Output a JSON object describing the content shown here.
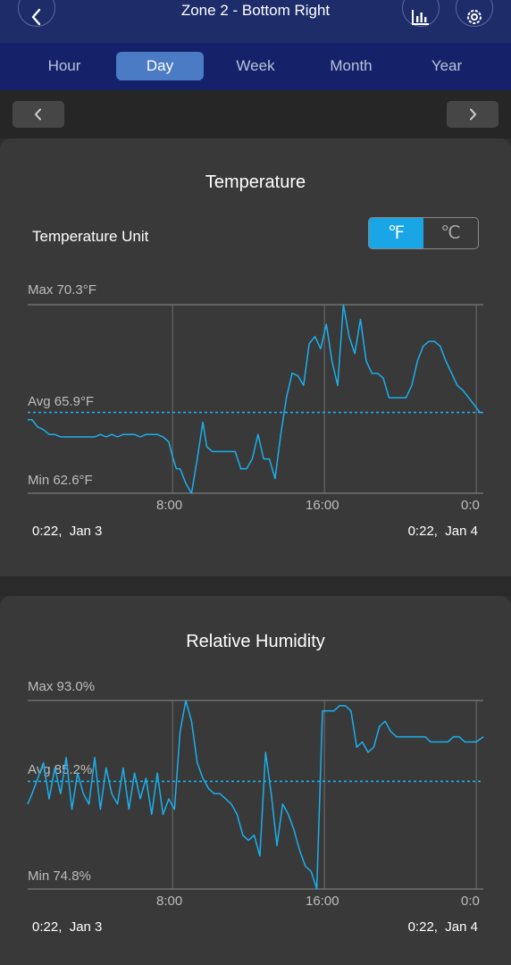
{
  "header": {
    "title": "Zone 2 - Bottom Right",
    "back_icon": "chevron-left-icon",
    "chart_icon": "bar-chart-icon",
    "settings_icon": "gear-icon"
  },
  "tabs": [
    {
      "label": "Hour",
      "active": false
    },
    {
      "label": "Day",
      "active": true
    },
    {
      "label": "Week",
      "active": false
    },
    {
      "label": "Month",
      "active": false
    },
    {
      "label": "Year",
      "active": false
    }
  ],
  "nav": {
    "prev_icon": "chevron-left-icon",
    "next_icon": "chevron-right-icon"
  },
  "temperature": {
    "title": "Temperature",
    "unit_label": "Temperature Unit",
    "unit_f": "℉",
    "unit_c": "℃",
    "selected_unit": "F",
    "max_label": "Max 70.3°F",
    "avg_label": "Avg 65.9°F",
    "min_label": "Min 62.6°F",
    "ticks": [
      "8:00",
      "16:00",
      "0:0"
    ],
    "start_label": "0:22,  Jan 3",
    "end_label": "0:22,  Jan 4"
  },
  "humidity": {
    "title": "Relative Humidity",
    "max_label": "Max 93.0%",
    "avg_label": "Avg 85.2%",
    "min_label": "Min 74.8%",
    "ticks": [
      "8:00",
      "16:00",
      "0:0"
    ],
    "start_label": "0:22,  Jan 3",
    "end_label": "0:22,  Jan 4"
  },
  "colors": {
    "line": "#1ab0ee",
    "avg": "#1ab0ee",
    "accent": "#1aa6e6"
  },
  "chart_data": [
    {
      "type": "line",
      "title": "Temperature",
      "unit": "°F",
      "x_range_hours": [
        0.37,
        24.37
      ],
      "x_ticks_hours": [
        8,
        16,
        24
      ],
      "ylim": [
        62.6,
        70.3
      ],
      "avg": 65.9,
      "series": [
        {
          "x": [
            0.37,
            0.6,
            0.9,
            1.2,
            1.5,
            1.8,
            2.1,
            2.4,
            2.7,
            3.0,
            3.3,
            3.6,
            3.9,
            4.2,
            4.5,
            4.8,
            5.1,
            5.4,
            5.7,
            6.0,
            6.3,
            6.6,
            6.9,
            7.2,
            7.5,
            7.8,
            8.0,
            8.2,
            8.4,
            8.7,
            9.0,
            9.3,
            9.6,
            9.8,
            10.1,
            10.4,
            10.7,
            11.0,
            11.3,
            11.6,
            11.9,
            12.2,
            12.5,
            12.8,
            13.1,
            13.4,
            13.7,
            14.0,
            14.3,
            14.6,
            14.9,
            15.2,
            15.5,
            15.8,
            16.1,
            16.4,
            16.7,
            17.0,
            17.3,
            17.6,
            17.9,
            18.2,
            18.5,
            18.8,
            19.1,
            19.4,
            19.7,
            20.0,
            20.3,
            20.6,
            20.9,
            21.2,
            21.5,
            21.8,
            22.1,
            22.4,
            22.7,
            23.0,
            23.3,
            23.6,
            23.9,
            24.2,
            24.37
          ],
          "y": [
            65.6,
            65.6,
            65.3,
            65.2,
            65.0,
            65.0,
            64.9,
            64.9,
            64.9,
            64.9,
            64.9,
            64.9,
            64.9,
            65.0,
            64.9,
            65.0,
            64.9,
            65.0,
            65.0,
            65.0,
            64.9,
            65.0,
            65.0,
            65.0,
            64.9,
            64.7,
            64.1,
            63.6,
            63.6,
            63.0,
            62.6,
            64.0,
            65.5,
            64.5,
            64.3,
            64.3,
            64.3,
            64.3,
            64.3,
            63.6,
            63.6,
            64.0,
            65.0,
            64.0,
            64.0,
            63.2,
            65.0,
            66.5,
            67.5,
            67.4,
            67.0,
            68.7,
            69.0,
            68.5,
            69.5,
            68.0,
            67.0,
            70.3,
            69.0,
            68.3,
            69.7,
            68.0,
            67.5,
            67.5,
            67.3,
            66.5,
            66.5,
            66.5,
            66.5,
            67.0,
            68.0,
            68.6,
            68.8,
            68.8,
            68.6,
            68.0,
            67.5,
            67.0,
            66.8,
            66.5,
            66.2,
            65.9,
            65.9
          ]
        }
      ]
    },
    {
      "type": "line",
      "title": "Relative Humidity",
      "unit": "%",
      "x_range_hours": [
        0.37,
        24.37
      ],
      "x_ticks_hours": [
        8,
        16,
        24
      ],
      "ylim": [
        74.8,
        93.0
      ],
      "avg": 85.2,
      "series": [
        {
          "x": [
            0.37,
            0.6,
            0.9,
            1.2,
            1.5,
            1.8,
            2.1,
            2.4,
            2.7,
            3.0,
            3.3,
            3.6,
            3.9,
            4.2,
            4.5,
            4.8,
            5.1,
            5.4,
            5.7,
            6.0,
            6.3,
            6.6,
            6.9,
            7.2,
            7.5,
            7.8,
            8.1,
            8.4,
            8.7,
            9.0,
            9.3,
            9.6,
            9.9,
            10.2,
            10.5,
            10.8,
            11.1,
            11.4,
            11.7,
            12.0,
            12.3,
            12.6,
            12.9,
            13.2,
            13.5,
            13.8,
            14.1,
            14.4,
            14.7,
            15.0,
            15.3,
            15.6,
            15.9,
            16.2,
            16.5,
            16.8,
            17.1,
            17.4,
            17.7,
            18.0,
            18.3,
            18.6,
            18.9,
            19.2,
            19.5,
            19.8,
            20.1,
            20.4,
            20.7,
            21.0,
            21.3,
            21.6,
            21.9,
            22.2,
            22.5,
            22.8,
            23.1,
            23.4,
            23.7,
            24.0,
            24.37
          ],
          "y": [
            83.0,
            84.0,
            85.5,
            87.0,
            83.5,
            86.5,
            84.0,
            87.5,
            82.5,
            86.0,
            84.0,
            83.0,
            87.5,
            82.5,
            86.5,
            84.0,
            83.0,
            86.5,
            82.5,
            86.0,
            83.5,
            85.5,
            82.0,
            86.0,
            82.0,
            83.5,
            82.5,
            90.0,
            93.0,
            91.0,
            87.0,
            85.5,
            84.5,
            84.0,
            84.0,
            83.5,
            83.0,
            82.0,
            80.0,
            79.5,
            80.0,
            78.0,
            88.0,
            84.0,
            79.0,
            83.0,
            82.0,
            80.5,
            78.5,
            77.0,
            76.5,
            74.8,
            92.0,
            92.0,
            92.0,
            92.5,
            92.5,
            92.0,
            88.5,
            89.0,
            88.0,
            88.5,
            90.5,
            91.0,
            90.0,
            89.5,
            89.5,
            89.5,
            89.5,
            89.5,
            89.5,
            89.0,
            89.0,
            89.0,
            89.0,
            89.5,
            89.5,
            89.0,
            89.0,
            89.0,
            89.5
          ]
        }
      ]
    }
  ]
}
